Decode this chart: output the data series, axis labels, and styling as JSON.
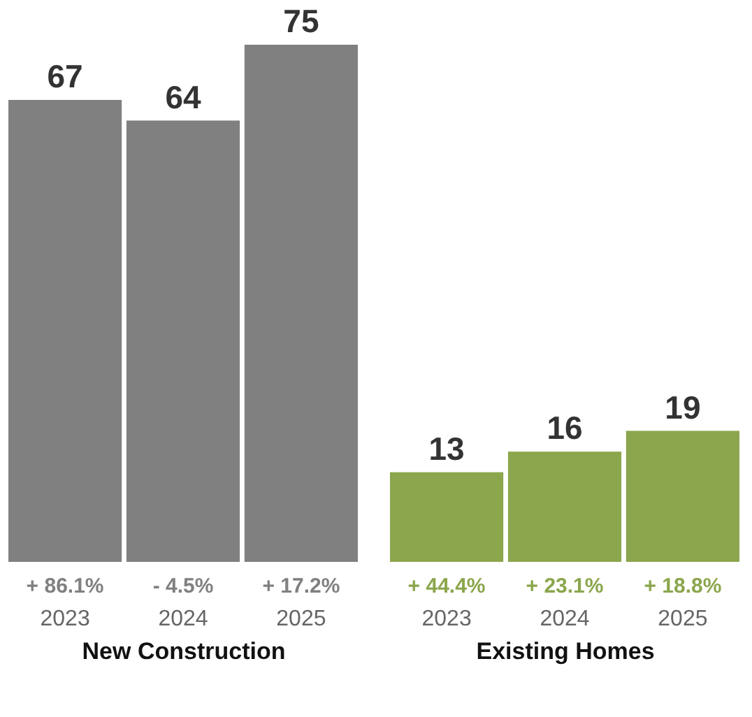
{
  "chart_data": [
    {
      "type": "bar",
      "xlabel": "New Construction",
      "categories": [
        "2023",
        "2024",
        "2025"
      ],
      "values": [
        67,
        64,
        75
      ],
      "color": "#808080",
      "data_labels": true,
      "annotations": [
        "+ 86.1%",
        "- 4.5%",
        "+ 17.2%"
      ]
    },
    {
      "type": "bar",
      "xlabel": "Existing Homes",
      "categories": [
        "2023",
        "2024",
        "2025"
      ],
      "values": [
        13,
        16,
        19
      ],
      "color": "#8ba64c",
      "data_labels": true,
      "annotations": [
        "+ 44.4%",
        "+ 23.1%",
        "+ 18.8%"
      ]
    }
  ]
}
